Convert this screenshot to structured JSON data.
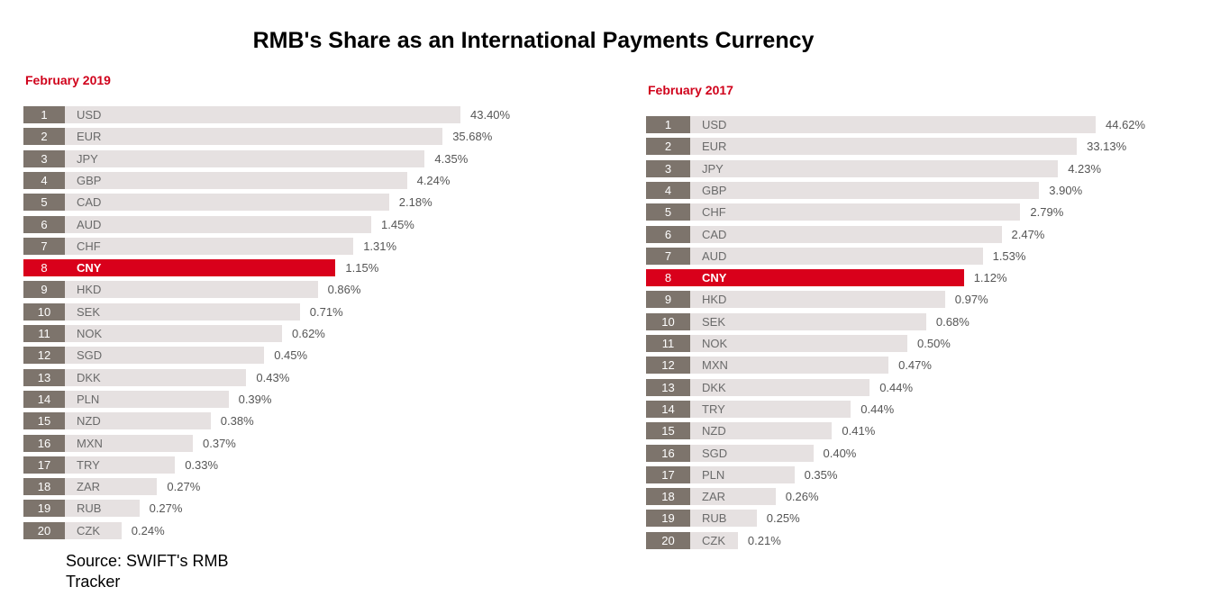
{
  "title": "RMB's Share as an International Payments Currency",
  "source": "Source: SWIFT's RMB Tracker",
  "colors": {
    "highlight": "#d9001b",
    "rank_box": "#7d746c",
    "bar": "#e6e1e1",
    "subtitle": "#d0021b"
  },
  "chart_data": [
    {
      "type": "bar",
      "title": "February 2019",
      "highlight": "CNY",
      "ranks": [
        1,
        2,
        3,
        4,
        5,
        6,
        7,
        8,
        9,
        10,
        11,
        12,
        13,
        14,
        15,
        16,
        17,
        18,
        19,
        20
      ],
      "categories": [
        "USD",
        "EUR",
        "JPY",
        "GBP",
        "CAD",
        "AUD",
        "CHF",
        "CNY",
        "HKD",
        "SEK",
        "NOK",
        "SGD",
        "DKK",
        "PLN",
        "NZD",
        "MXN",
        "TRY",
        "ZAR",
        "RUB",
        "CZK"
      ],
      "labels": [
        "43.40%",
        "35.68%",
        "4.35%",
        "4.24%",
        "2.18%",
        "1.45%",
        "1.31%",
        "1.15%",
        "0.86%",
        "0.71%",
        "0.62%",
        "0.45%",
        "0.43%",
        "0.39%",
        "0.38%",
        "0.37%",
        "0.33%",
        "0.27%",
        "0.27%",
        "0.24%"
      ],
      "values": [
        43.4,
        35.68,
        4.35,
        4.24,
        2.18,
        1.45,
        1.31,
        1.15,
        0.86,
        0.71,
        0.62,
        0.45,
        0.43,
        0.39,
        0.38,
        0.37,
        0.33,
        0.27,
        0.27,
        0.24
      ]
    },
    {
      "type": "bar",
      "title": "February 2017",
      "highlight": "CNY",
      "ranks": [
        1,
        2,
        3,
        4,
        5,
        6,
        7,
        8,
        9,
        10,
        11,
        12,
        13,
        14,
        15,
        16,
        17,
        18,
        19,
        20
      ],
      "categories": [
        "USD",
        "EUR",
        "JPY",
        "GBP",
        "CHF",
        "CAD",
        "AUD",
        "CNY",
        "HKD",
        "SEK",
        "NOK",
        "MXN",
        "DKK",
        "TRY",
        "NZD",
        "SGD",
        "PLN",
        "ZAR",
        "RUB",
        "CZK"
      ],
      "labels": [
        "44.62%",
        "33.13%",
        "4.23%",
        "3.90%",
        "2.79%",
        "2.47%",
        "1.53%",
        "1.12%",
        "0.97%",
        "0.68%",
        "0.50%",
        "0.47%",
        "0.44%",
        "0.44%",
        "0.41%",
        "0.40%",
        "0.35%",
        "0.26%",
        "0.25%",
        "0.21%"
      ],
      "values": [
        44.62,
        33.13,
        4.23,
        3.9,
        2.79,
        2.47,
        1.53,
        1.12,
        0.97,
        0.68,
        0.5,
        0.47,
        0.44,
        0.44,
        0.41,
        0.4,
        0.35,
        0.26,
        0.25,
        0.21
      ]
    }
  ]
}
